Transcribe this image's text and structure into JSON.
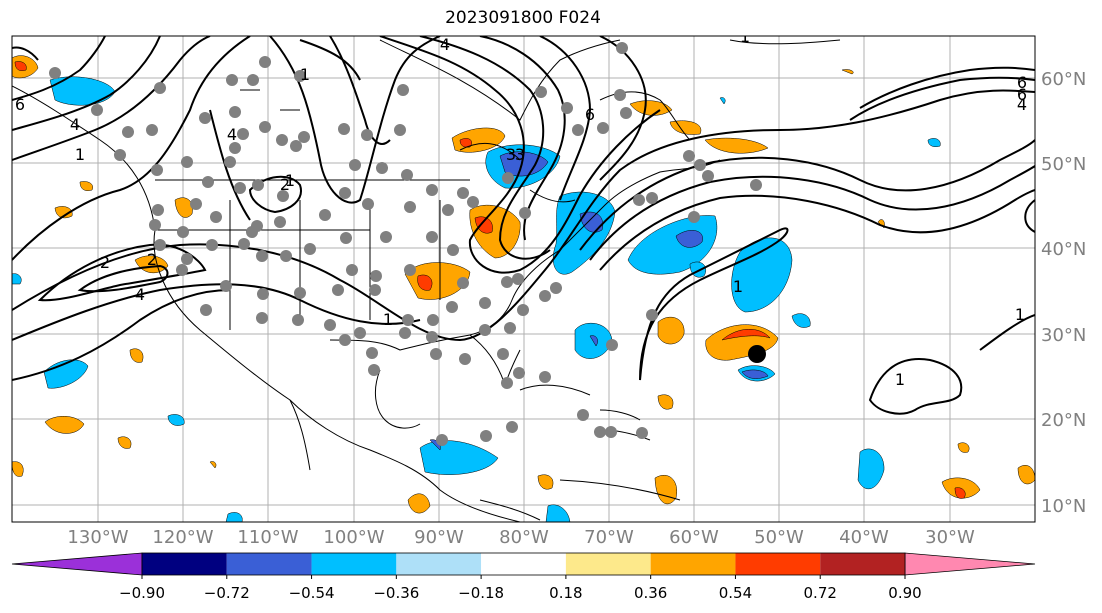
{
  "title": "2023091800 F024",
  "map": {
    "lon_labels": [
      "130°W",
      "120°W",
      "110°W",
      "100°W",
      "90°W",
      "80°W",
      "70°W",
      "60°W",
      "50°W",
      "40°W",
      "30°W"
    ],
    "lat_labels": [
      "60°N",
      "50°N",
      "40°N",
      "30°N",
      "20°N",
      "10°N"
    ],
    "contour_labels": [
      "1",
      "2",
      "4",
      "6",
      "1",
      "2",
      "4",
      "1",
      "3",
      "6",
      "4",
      "1",
      "6",
      "6",
      "4",
      "1",
      "1",
      "1",
      "1",
      "4",
      "2",
      "3"
    ],
    "storm_marker": "black-dot"
  },
  "colorbar": {
    "tick_labels": [
      "−0.90",
      "−0.72",
      "−0.54",
      "−0.36",
      "−0.18",
      "0.18",
      "0.36",
      "0.54",
      "0.72",
      "0.90"
    ],
    "colors": [
      "#9b30d9",
      "#000080",
      "#3a5fd6",
      "#00bfff",
      "#aee0f8",
      "#ffffff",
      "#fde98b",
      "#ffa500",
      "#ff3c00",
      "#b22222",
      "#ff88b0"
    ]
  }
}
